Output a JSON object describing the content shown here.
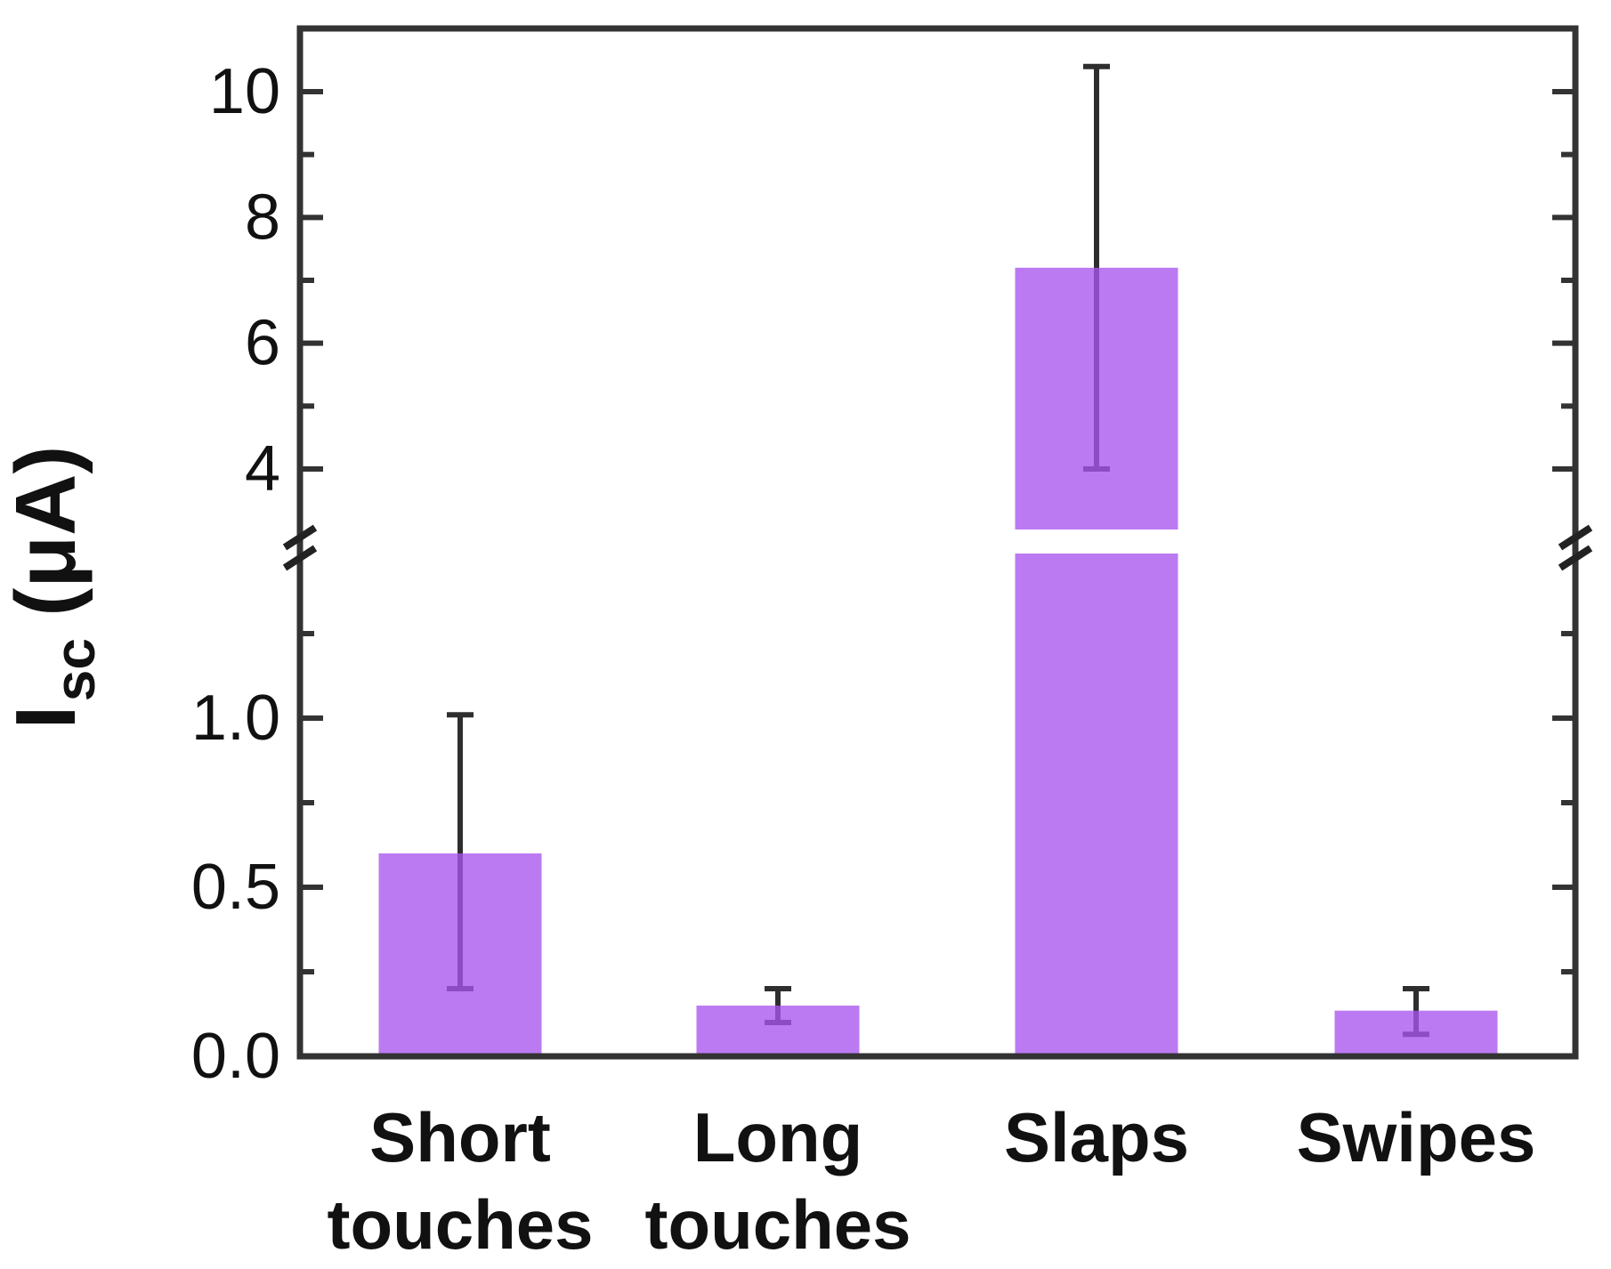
{
  "chart_data": {
    "type": "bar",
    "title": "",
    "ylabel": {
      "main": "I",
      "sub": "sc",
      "unit": "(μA)",
      "full": "Isc (μA)"
    },
    "xlabel": "",
    "categories": [
      "Short touches",
      "Long touches",
      "Slaps",
      "Swipes"
    ],
    "category_label_lines": [
      [
        "Short",
        "touches"
      ],
      [
        "Long",
        "touches"
      ],
      [
        "Slaps"
      ],
      [
        "Swipes"
      ]
    ],
    "values": [
      0.6,
      0.15,
      7.2,
      0.135
    ],
    "error_low": [
      0.2,
      0.1,
      4.0,
      0.065
    ],
    "error_high": [
      1.01,
      0.2,
      10.4,
      0.2
    ],
    "y_axis": {
      "broken": true,
      "lower_segment": {
        "min": 0.0,
        "max": 1.45,
        "major_ticks": [
          0.0,
          0.5,
          1.0
        ],
        "major_tick_labels": [
          "0.0",
          "0.5",
          "1.0"
        ],
        "minor_ticks": [
          0.25,
          0.75,
          1.25
        ]
      },
      "upper_segment": {
        "min": 3.0,
        "max": 10.9,
        "major_ticks": [
          4,
          6,
          8,
          10
        ],
        "major_tick_labels": [
          "4",
          "6",
          "8",
          "10"
        ],
        "minor_ticks": [
          5,
          7,
          9
        ]
      }
    },
    "grid": false,
    "legend": null,
    "colors": {
      "bar_fill": "#A955EE",
      "bar_opacity": 0.78,
      "error_bar": "#2E2E2E",
      "frame": "#333333",
      "text": "#111111",
      "background": "#FFFFFF"
    }
  }
}
